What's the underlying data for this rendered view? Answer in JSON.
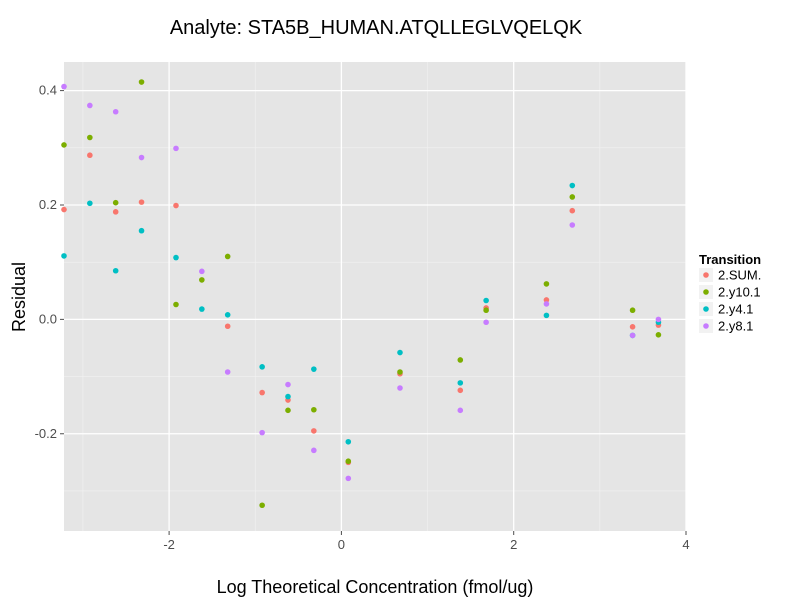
{
  "chart_data": {
    "type": "scatter",
    "title": "Analyte: STA5B_HUMAN.ATQLLEGLVQELQK",
    "xlabel": "Log Theoretical Concentration (fmol/ug)",
    "ylabel": "Residual",
    "xlim": [
      -3.22,
      4.0
    ],
    "ylim": [
      -0.37,
      0.45
    ],
    "x_ticks": [
      -2,
      0,
      2,
      4
    ],
    "x_tick_labels": [
      "-2",
      "0",
      "2",
      "4"
    ],
    "y_ticks": [
      -0.2,
      0.0,
      0.2,
      0.4
    ],
    "y_tick_labels": [
      "-0.2",
      "0.0",
      "0.2",
      "0.4"
    ],
    "grid": true,
    "background": "#e5e5e5",
    "legend": {
      "title": "Transition",
      "position": "right"
    },
    "series": [
      {
        "name": "2.SUM.",
        "color": "#f8766d",
        "points": [
          [
            -3.22,
            0.192
          ],
          [
            -2.92,
            0.287
          ],
          [
            -2.62,
            0.188
          ],
          [
            -2.32,
            0.205
          ],
          [
            -1.92,
            0.199
          ],
          [
            -1.32,
            -0.012
          ],
          [
            -0.92,
            -0.128
          ],
          [
            -0.62,
            -0.141
          ],
          [
            -0.32,
            -0.195
          ],
          [
            0.08,
            -0.25
          ],
          [
            0.68,
            -0.095
          ],
          [
            1.38,
            -0.124
          ],
          [
            1.68,
            0.02
          ],
          [
            2.38,
            0.034
          ],
          [
            2.68,
            0.19
          ],
          [
            3.38,
            -0.013
          ],
          [
            3.68,
            -0.01
          ]
        ]
      },
      {
        "name": "2.y10.1",
        "color": "#7cae00",
        "points": [
          [
            -3.22,
            0.305
          ],
          [
            -2.92,
            0.318
          ],
          [
            -2.62,
            0.204
          ],
          [
            -2.32,
            0.415
          ],
          [
            -1.92,
            0.026
          ],
          [
            -1.62,
            0.069
          ],
          [
            -1.32,
            0.11
          ],
          [
            -0.92,
            -0.325
          ],
          [
            -0.62,
            -0.159
          ],
          [
            -0.32,
            -0.158
          ],
          [
            0.08,
            -0.248
          ],
          [
            0.68,
            -0.092
          ],
          [
            1.38,
            -0.071
          ],
          [
            1.68,
            0.016
          ],
          [
            2.38,
            0.062
          ],
          [
            2.68,
            0.214
          ],
          [
            3.38,
            0.016
          ],
          [
            3.68,
            -0.027
          ]
        ]
      },
      {
        "name": "2.y4.1",
        "color": "#00bfc4",
        "points": [
          [
            -3.22,
            0.111
          ],
          [
            -2.92,
            0.203
          ],
          [
            -2.62,
            0.085
          ],
          [
            -2.32,
            0.155
          ],
          [
            -1.92,
            0.108
          ],
          [
            -1.62,
            0.018
          ],
          [
            -1.32,
            0.008
          ],
          [
            -0.92,
            -0.083
          ],
          [
            -0.62,
            -0.135
          ],
          [
            -0.32,
            -0.087
          ],
          [
            0.08,
            -0.214
          ],
          [
            0.68,
            -0.058
          ],
          [
            1.38,
            -0.111
          ],
          [
            1.68,
            0.033
          ],
          [
            2.38,
            0.007
          ],
          [
            2.68,
            0.234
          ],
          [
            3.38,
            -0.028
          ],
          [
            3.68,
            -0.005
          ]
        ]
      },
      {
        "name": "2.y8.1",
        "color": "#c77cff",
        "points": [
          [
            -3.22,
            0.407
          ],
          [
            -2.92,
            0.374
          ],
          [
            -2.62,
            0.363
          ],
          [
            -2.32,
            0.283
          ],
          [
            -1.92,
            0.299
          ],
          [
            -1.62,
            0.084
          ],
          [
            -1.32,
            -0.092
          ],
          [
            -0.92,
            -0.198
          ],
          [
            -0.62,
            -0.114
          ],
          [
            -0.32,
            -0.229
          ],
          [
            0.08,
            -0.278
          ],
          [
            0.68,
            -0.12
          ],
          [
            1.38,
            -0.159
          ],
          [
            1.68,
            -0.005
          ],
          [
            2.38,
            0.027
          ],
          [
            2.68,
            0.165
          ],
          [
            3.38,
            -0.028
          ],
          [
            3.68,
            0.0
          ]
        ]
      }
    ]
  }
}
